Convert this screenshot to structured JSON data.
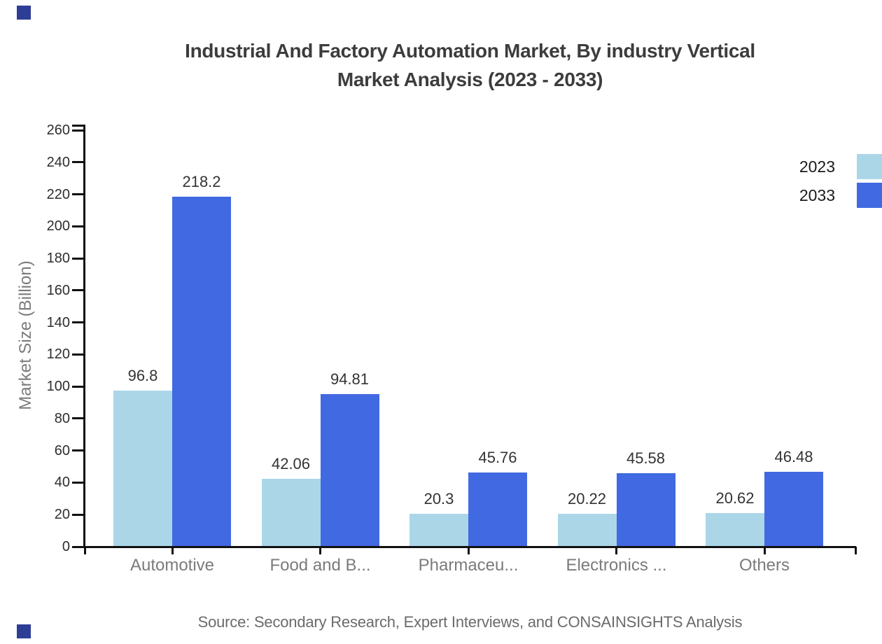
{
  "title": {
    "line1": "Industrial And Factory Automation Market, By industry Vertical",
    "line2": "Market Analysis (2023 - 2033)"
  },
  "legend": [
    {
      "label": "2023",
      "color": "#abd6e8"
    },
    {
      "label": "2033",
      "color": "#4169e1"
    }
  ],
  "chart_data": {
    "type": "bar",
    "categories": [
      "Automotive",
      "Food and B...",
      "Pharmaceu...",
      "Electronics ...",
      "Others"
    ],
    "series": [
      {
        "name": "2023",
        "color": "#abd6e8",
        "values": [
          96.8,
          42.06,
          20.3,
          20.22,
          20.62
        ],
        "labels": [
          "96.8",
          "42.06",
          "20.3",
          "20.22",
          "20.62"
        ]
      },
      {
        "name": "2033",
        "color": "#4169e1",
        "values": [
          218.2,
          94.81,
          45.76,
          45.58,
          46.48
        ],
        "labels": [
          "218.2",
          "94.81",
          "45.76",
          "45.58",
          "46.48"
        ]
      }
    ],
    "title": "Industrial And Factory Automation Market, By industry Vertical Market Analysis (2023 - 2033)",
    "xlabel": "",
    "ylabel": "Market Size (Billion)",
    "ylim": [
      0,
      260
    ],
    "ytick_step": 20,
    "yticks": [
      0,
      20,
      40,
      60,
      80,
      100,
      120,
      140,
      160,
      180,
      200,
      220,
      240,
      260
    ],
    "grid": false,
    "legend_position": "top-right"
  },
  "source": "Source: Secondary Research, Expert Interviews, and CONSAINSIGHTS Analysis",
  "branding": {
    "corner_color": "#2e3d96"
  }
}
